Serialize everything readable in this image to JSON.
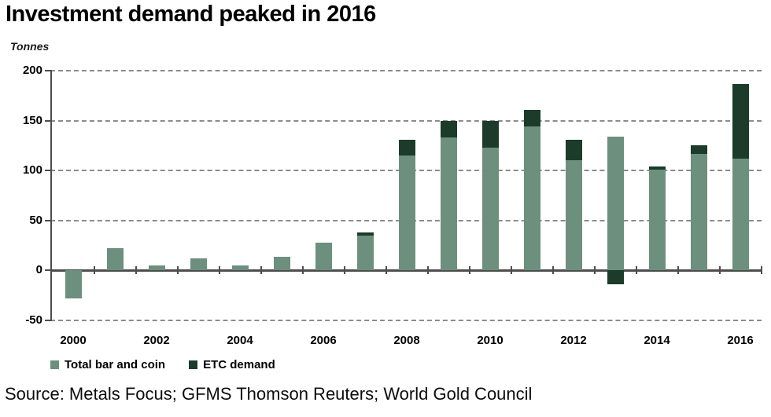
{
  "page": {
    "title": "Investment demand peaked in 2016",
    "y_axis_unit": "Tonnes",
    "source": "Source: Metals Focus; GFMS Thomson Reuters; World Gold Council"
  },
  "legend": {
    "items": [
      {
        "label": "Total bar and coin",
        "color": "#6d8f7e"
      },
      {
        "label": "ETC demand",
        "color": "#1c3b2a"
      }
    ]
  },
  "colors": {
    "bar_and_coin": "#6d8f7e",
    "etc_demand": "#1c3b2a",
    "axis": "#4d4d4d",
    "gridline": "#8c8c8c",
    "text": "#000000"
  },
  "chart_data": {
    "type": "bar",
    "stacked": true,
    "title": "Investment demand peaked in 2016",
    "ylabel": "Tonnes",
    "ylim": [
      -50,
      200
    ],
    "yticks": [
      200,
      150,
      100,
      50,
      0,
      -50
    ],
    "categories": [
      "2000",
      "2001",
      "2002",
      "2003",
      "2004",
      "2005",
      "2006",
      "2007",
      "2008",
      "2009",
      "2010",
      "2011",
      "2012",
      "2013",
      "2014",
      "2015",
      "2016"
    ],
    "xtick_labels": [
      "2000",
      "2002",
      "2004",
      "2006",
      "2008",
      "2010",
      "2012",
      "2014",
      "2016"
    ],
    "grid": "horizontal-dashed",
    "legend_position": "bottom-left",
    "series": [
      {
        "name": "Total bar and coin",
        "color": "#6d8f7e",
        "values": [
          -28,
          22,
          5,
          12,
          5,
          14,
          28,
          35,
          115,
          133,
          123,
          144,
          110,
          134,
          101,
          117,
          112
        ]
      },
      {
        "name": "ETC demand",
        "color": "#1c3b2a",
        "values": [
          0,
          0,
          0,
          0,
          0,
          0,
          0,
          3,
          16,
          17,
          27,
          17,
          21,
          -14,
          3,
          8,
          75
        ]
      }
    ]
  }
}
